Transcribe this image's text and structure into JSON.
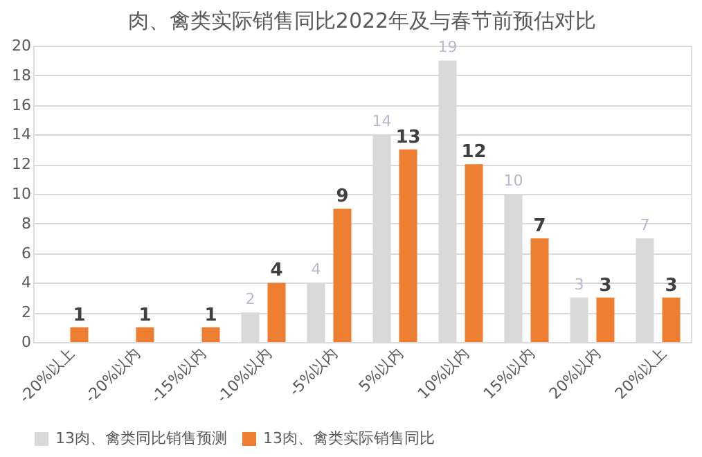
{
  "chart_data": {
    "type": "bar",
    "title": "肉、禽类实际销售同比2022年及与春节前预估对比",
    "categories": [
      "-20%以上",
      "-20%以内",
      "-15%以内",
      "-10%以内",
      "-5%以内",
      "5%以内",
      "10%以内",
      "15%以内",
      "20%以内",
      "20%以上"
    ],
    "series": [
      {
        "name": "13肉、禽类同比销售预测",
        "color": "#d9d9d9",
        "values": [
          null,
          null,
          null,
          2,
          4,
          14,
          19,
          10,
          3,
          7
        ]
      },
      {
        "name": "13肉、禽类实际销售同比",
        "color": "#ed7d31",
        "values": [
          1,
          1,
          1,
          4,
          9,
          13,
          12,
          7,
          3,
          3
        ]
      }
    ],
    "ylim": [
      0,
      20
    ],
    "yticks": [
      0,
      2,
      4,
      6,
      8,
      10,
      12,
      14,
      16,
      18,
      20
    ],
    "grid": "y",
    "legend": "bottom",
    "data_labels": true
  }
}
